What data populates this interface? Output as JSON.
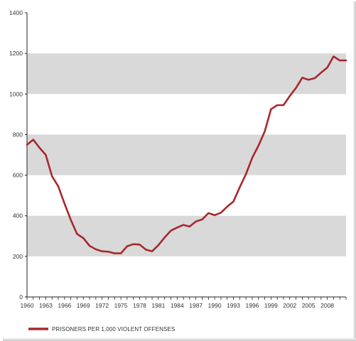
{
  "chart_data": {
    "type": "line",
    "xlim": [
      1960,
      2011
    ],
    "ylim": [
      0,
      1400
    ],
    "yticks": [
      0,
      200,
      400,
      600,
      800,
      1000,
      1200,
      1400
    ],
    "xticks": [
      1960,
      1963,
      1966,
      1969,
      1972,
      1975,
      1978,
      1981,
      1984,
      1987,
      1990,
      1993,
      1996,
      1999,
      2002,
      2005,
      2008
    ],
    "grid": "alternating horizontal bands",
    "band_color": "#d9d9d9",
    "legend_position": "bottom-left",
    "series": [
      {
        "name": "PRISONERS PER 1,000 VIOLENT OFFENSES",
        "color": "#a8282c",
        "x": [
          1960,
          1961,
          1962,
          1963,
          1964,
          1965,
          1966,
          1967,
          1968,
          1969,
          1970,
          1971,
          1972,
          1973,
          1974,
          1975,
          1976,
          1977,
          1978,
          1979,
          1980,
          1981,
          1982,
          1983,
          1984,
          1985,
          1986,
          1987,
          1988,
          1989,
          1990,
          1991,
          1992,
          1993,
          1994,
          1995,
          1996,
          1997,
          1998,
          1999,
          2000,
          2001,
          2002,
          2003,
          2004,
          2005,
          2006,
          2007,
          2008,
          2009,
          2010,
          2011
        ],
        "values": [
          750,
          775,
          735,
          700,
          595,
          545,
          460,
          380,
          310,
          290,
          252,
          235,
          225,
          223,
          215,
          215,
          250,
          260,
          258,
          233,
          225,
          255,
          293,
          327,
          342,
          355,
          347,
          372,
          382,
          413,
          403,
          415,
          445,
          470,
          540,
          605,
          685,
          745,
          815,
          925,
          945,
          945,
          990,
          1030,
          1080,
          1070,
          1078,
          1105,
          1130,
          1185,
          1165,
          1165
        ]
      }
    ]
  }
}
